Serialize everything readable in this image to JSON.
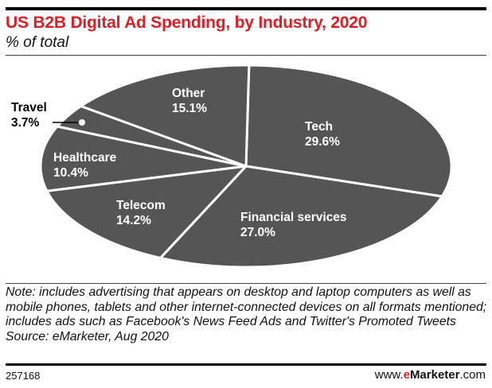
{
  "chart_data": {
    "type": "pie",
    "title": "US B2B Digital Ad Spending, by Industry, 2020",
    "subtitle": "% of total",
    "slices": [
      {
        "label": "Tech",
        "value": 29.6,
        "display": "29.6%"
      },
      {
        "label": "Financial services",
        "value": 27.0,
        "display": "27.0%"
      },
      {
        "label": "Telecom",
        "value": 14.2,
        "display": "14.2%"
      },
      {
        "label": "Healthcare",
        "value": 10.4,
        "display": "10.4%"
      },
      {
        "label": "Travel",
        "value": 3.7,
        "display": "3.7%"
      },
      {
        "label": "Other",
        "value": 15.1,
        "display": "15.1%"
      }
    ],
    "colors": {
      "slice": "#555555",
      "separator": "#ffffff",
      "title": "#e01c24"
    }
  },
  "footer": {
    "note": "Note: includes advertising that appears on desktop and laptop computers as well as mobile phones, tablets and other internet-connected devices on all formats mentioned; includes ads such as Facebook's News Feed Ads and Twitter's Promoted Tweets",
    "source": "Source: eMarketer, Aug 2020",
    "chart_id": "257168",
    "site_prefix": "www.",
    "site_brand_e": "e",
    "site_brand": "Marketer",
    "site_suffix": ".com"
  }
}
